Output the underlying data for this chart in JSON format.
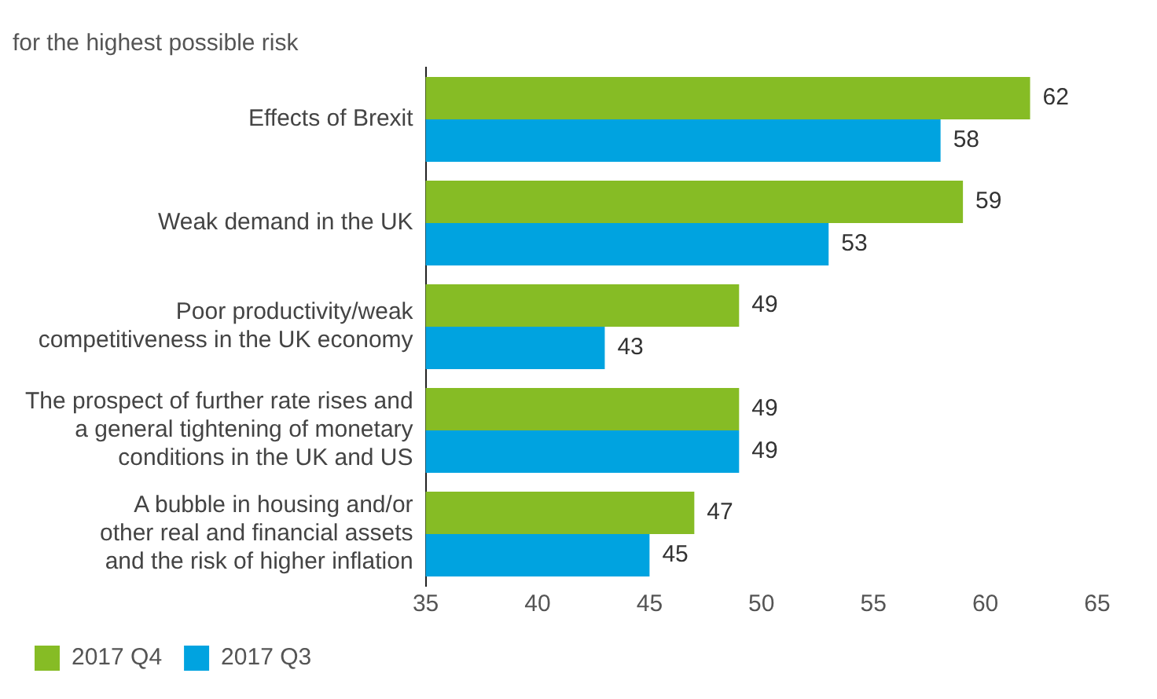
{
  "chart_data": {
    "type": "bar",
    "orientation": "horizontal",
    "subtitle": "for the highest possible risk",
    "categories": [
      "Effects of Brexit",
      "Weak demand in the UK",
      "Poor productivity/weak\ncompetitiveness in the UK economy",
      "The prospect of further rate rises and\na general tightening of monetary\nconditions in the UK and US",
      "A bubble in housing and/or\nother real and financial assets\nand the risk of higher inflation"
    ],
    "series": [
      {
        "name": "2017 Q4",
        "color": "#86bc25",
        "values": [
          62,
          59,
          49,
          49,
          47
        ]
      },
      {
        "name": "2017 Q3",
        "color": "#00a3e0",
        "values": [
          58,
          53,
          43,
          49,
          45
        ]
      }
    ],
    "xlim": [
      35,
      65
    ],
    "xticks": [
      35,
      40,
      45,
      50,
      55,
      60,
      65
    ],
    "data_labels": true,
    "grid": false,
    "legend": "bottom left"
  }
}
